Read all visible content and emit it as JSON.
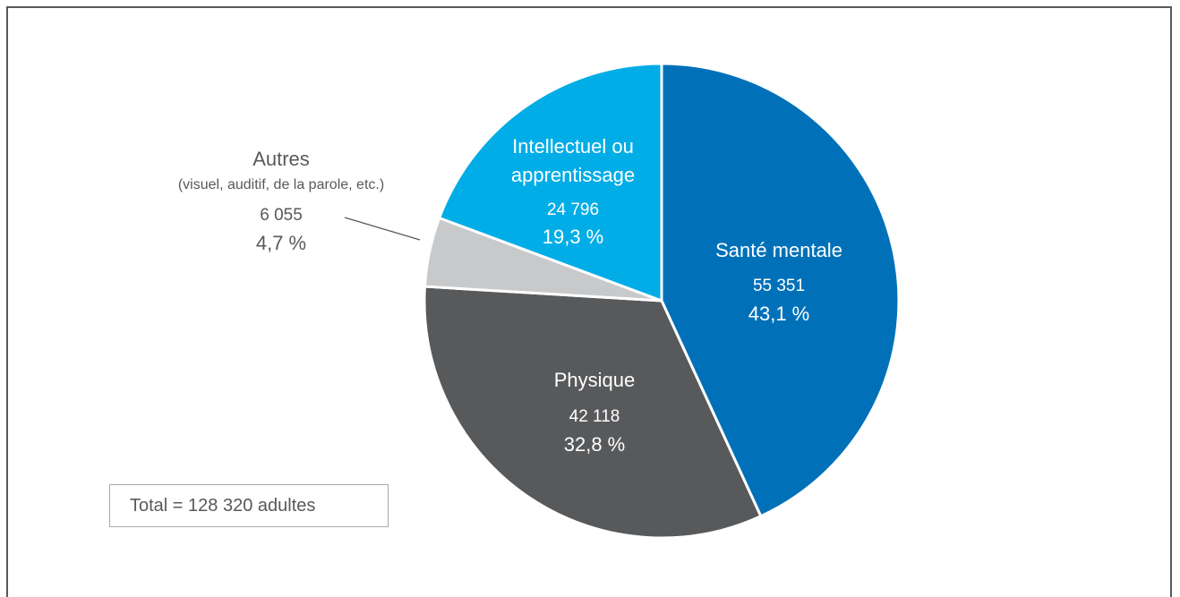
{
  "chart_data": {
    "type": "pie",
    "total_label": "Total = 128 320 adultes",
    "slices": [
      {
        "name": "Santé mentale",
        "value": 55351,
        "value_label": "55 351",
        "percent_label": "43,1 %",
        "color": "#0071b9",
        "text_color": "#ffffff"
      },
      {
        "name": "Physique",
        "value": 42118,
        "value_label": "42 118",
        "percent_label": "32,8 %",
        "color": "#58595b",
        "text_color": "#ffffff"
      },
      {
        "name": "Autres",
        "subtitle": "(visuel, auditif, de la parole, etc.)",
        "value": 6055,
        "value_label": "6 055",
        "percent_label": "4,7 %",
        "color": "#c8c9cb",
        "text_color": "#58595b"
      },
      {
        "name": "Intellectuel ou apprentissage",
        "name_lines": [
          "Intellectuel ou",
          "apprentissage"
        ],
        "value": 24796,
        "value_label": "24 796",
        "percent_label": "19,3 %",
        "color": "#00ade6",
        "text_color": "#ffffff"
      }
    ]
  }
}
